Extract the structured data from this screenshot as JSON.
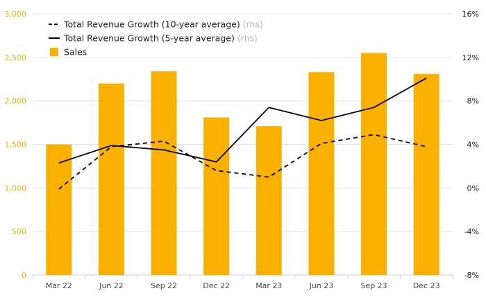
{
  "chart_data": {
    "type": "bar",
    "categories": [
      "Mar 22",
      "Jun 22",
      "Sep 22",
      "Dec 22",
      "Mar 23",
      "Jun 23",
      "Sep 23",
      "Dec 23"
    ],
    "series": [
      {
        "name": "Sales",
        "type": "bar",
        "axis": "left",
        "values": [
          1500,
          2200,
          2340,
          1810,
          1710,
          2330,
          2550,
          2310
        ]
      },
      {
        "name": "Total Revenue Growth (10-year average)",
        "type": "line",
        "style": "dashed",
        "axis": "right",
        "values": [
          -0.1,
          3.8,
          4.3,
          1.6,
          1.0,
          4.1,
          4.9,
          3.8
        ]
      },
      {
        "name": "Total Revenue Growth (5-year average)",
        "type": "line",
        "style": "solid",
        "axis": "right",
        "values": [
          2.3,
          3.9,
          3.5,
          2.4,
          7.4,
          6.2,
          7.4,
          10.1
        ]
      }
    ],
    "left_axis": {
      "ticks": [
        "0",
        "500",
        "1,000",
        "1,500",
        "2,000",
        "2,500",
        "3,000"
      ],
      "ylim": [
        0,
        3000
      ]
    },
    "right_axis": {
      "ticks": [
        "-8%",
        "-4%",
        "0%",
        "4%",
        "8%",
        "12%",
        "16%"
      ],
      "ylim": [
        -8,
        16
      ]
    },
    "legend": {
      "placement": "top-left",
      "rhs_suffix": "(rhs)",
      "items": [
        {
          "label": "Total Revenue Growth (10-year average)",
          "marker": "dashed-line",
          "rhs": true
        },
        {
          "label": "Total Revenue Growth (5-year average)",
          "marker": "solid-line",
          "rhs": true
        },
        {
          "label": "Sales",
          "marker": "bar",
          "rhs": false
        }
      ]
    },
    "grid": "horizontal",
    "colors": {
      "bar": "#f8b100",
      "line": "#000000",
      "grid": "#e5e5e5",
      "left_tick": "#f2b000"
    }
  }
}
